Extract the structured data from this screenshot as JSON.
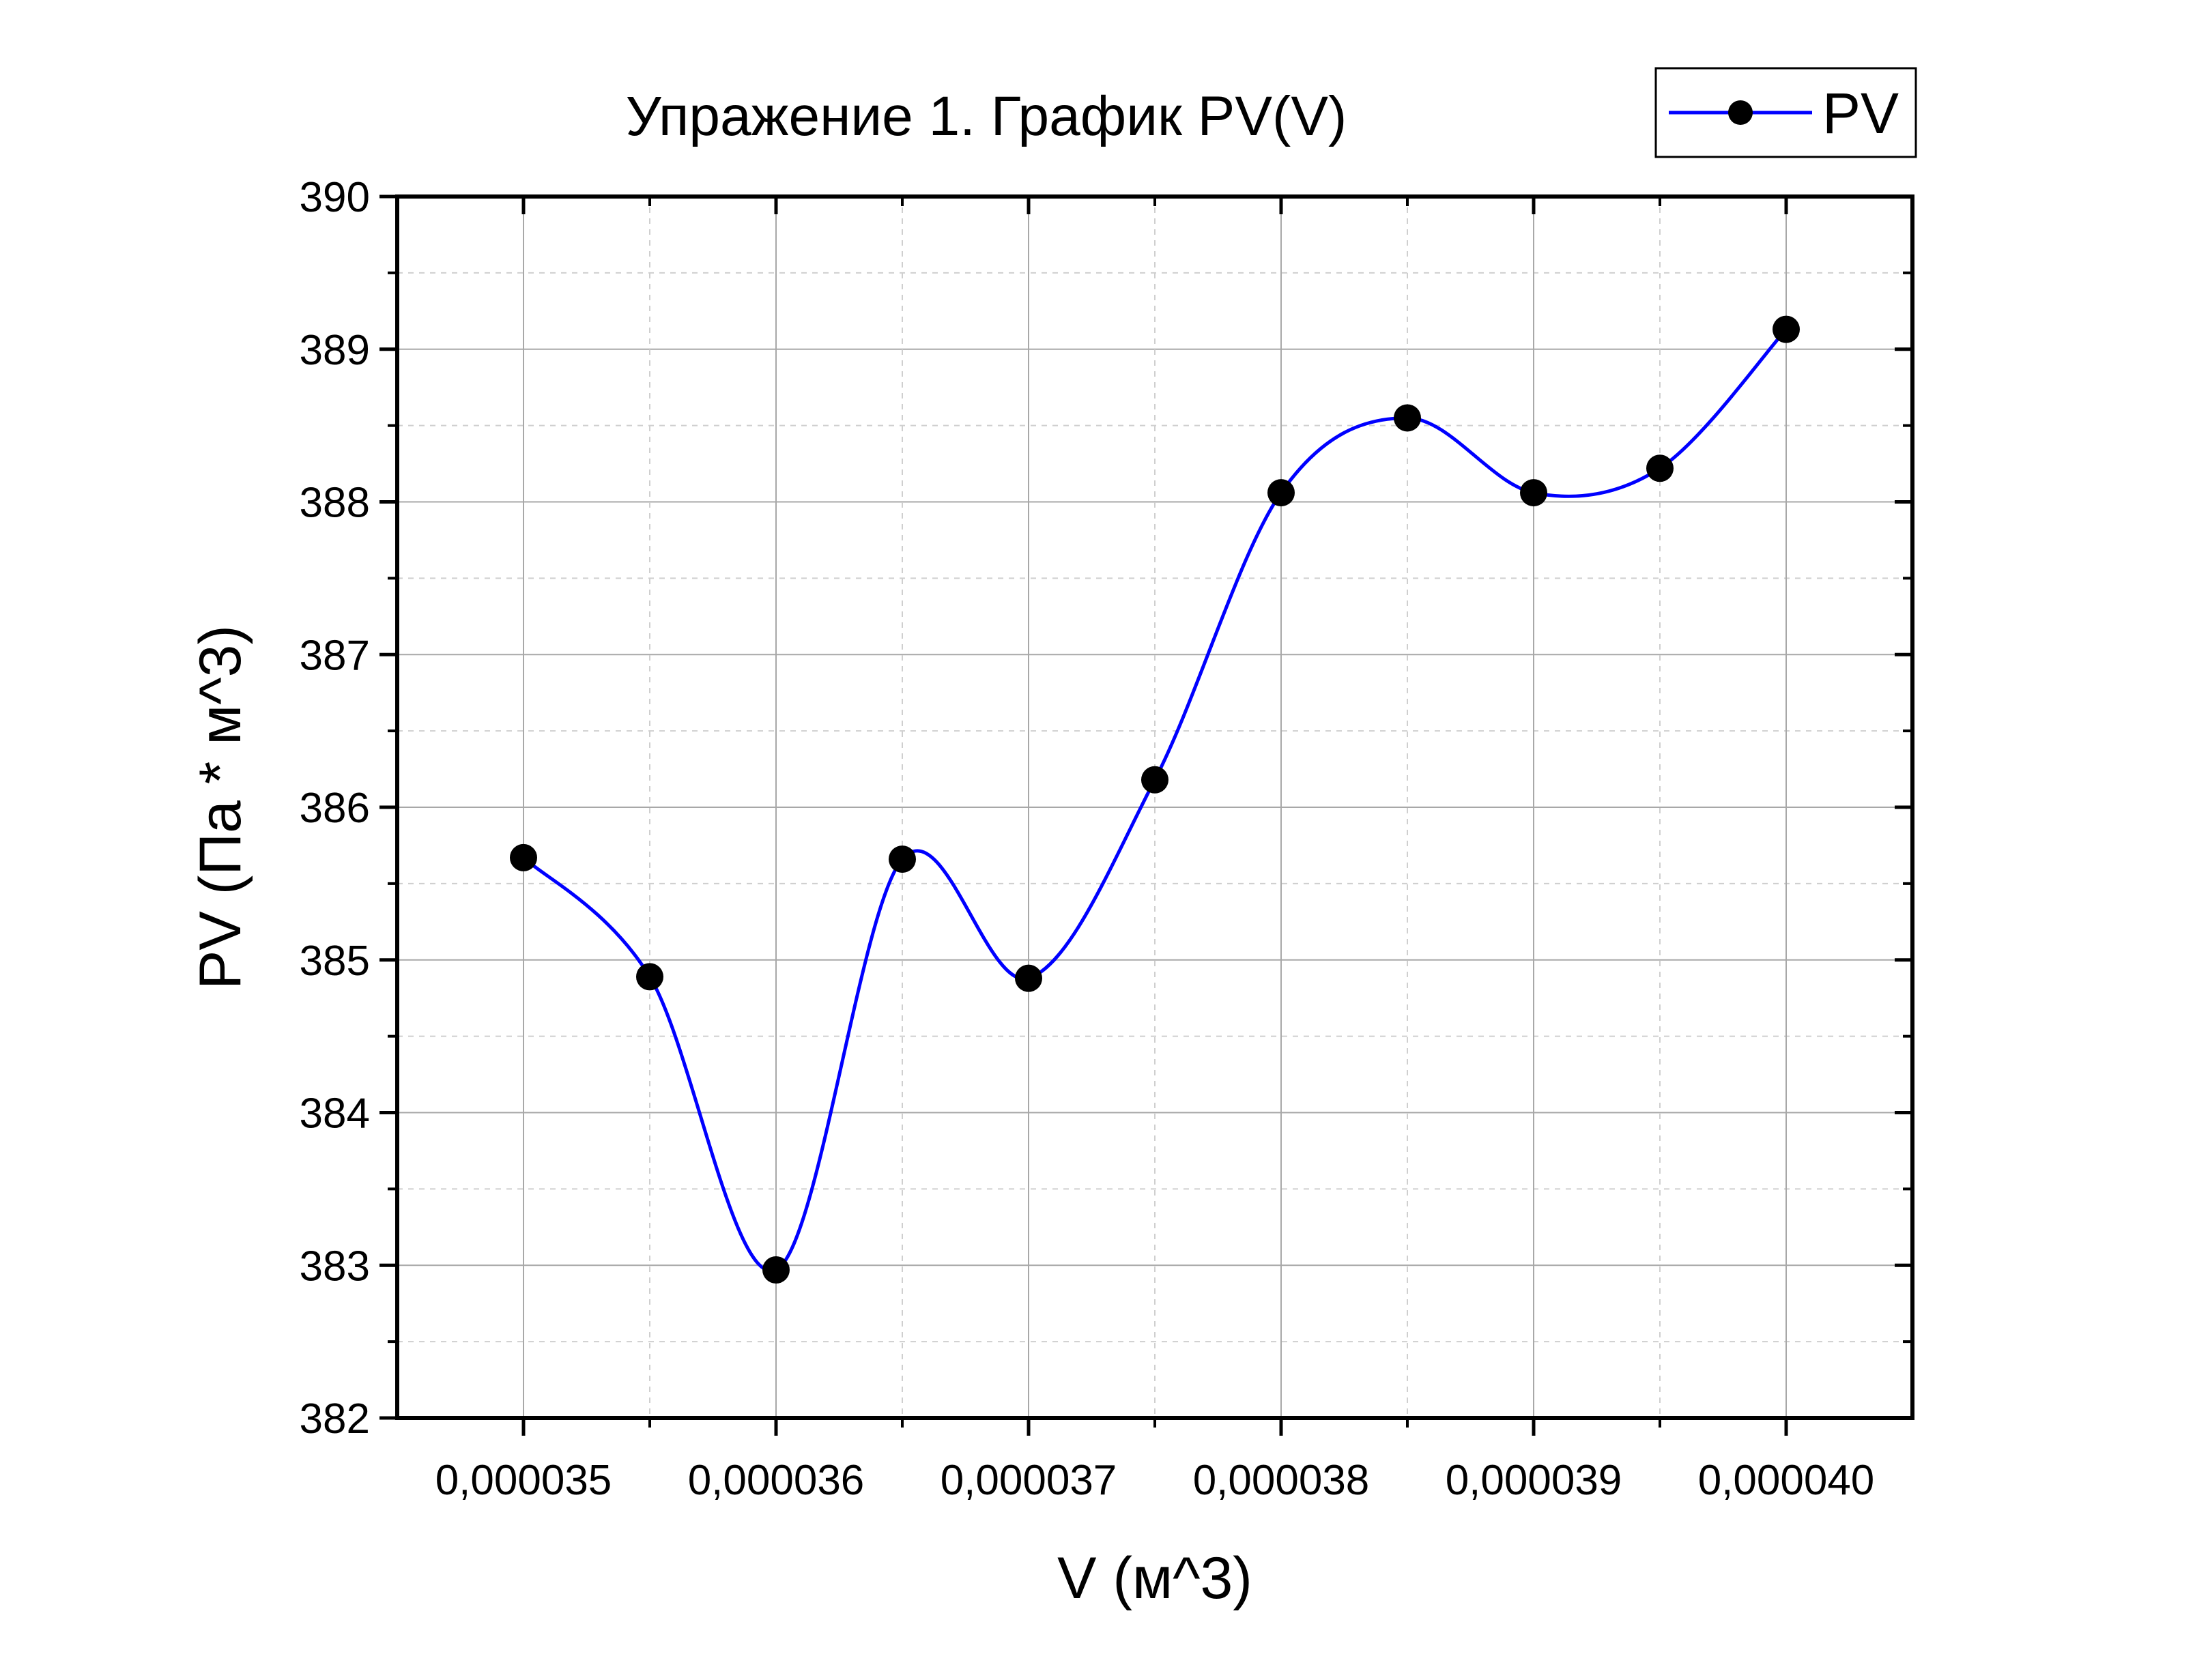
{
  "chart_data": {
    "type": "line",
    "title": "Упражение 1. График PV(V)",
    "xlabel": "V (м^3)",
    "ylabel": "PV (Па * м^3)",
    "xlim": [
      3.45e-05,
      4.05e-05
    ],
    "ylim": [
      382,
      390
    ],
    "x_ticks": [
      3.5e-05,
      3.6e-05,
      3.7e-05,
      3.8e-05,
      3.9e-05,
      4e-05
    ],
    "x_tick_labels": [
      "0,000035",
      "0,000036",
      "0,000037",
      "0,000038",
      "0,000039",
      "0,000040"
    ],
    "y_ticks": [
      382,
      383,
      384,
      385,
      386,
      387,
      388,
      389,
      390
    ],
    "y_tick_labels": [
      "382",
      "383",
      "384",
      "385",
      "386",
      "387",
      "388",
      "389",
      "390"
    ],
    "grid": true,
    "smoothed": true,
    "legend_position": "top-right",
    "series": [
      {
        "name": "PV",
        "color": "#0000ff",
        "marker": "circle",
        "marker_color": "#000000",
        "x": [
          3.5e-05,
          3.55e-05,
          3.6e-05,
          3.65e-05,
          3.7e-05,
          3.75e-05,
          3.8e-05,
          3.85e-05,
          3.9e-05,
          3.95e-05,
          4e-05
        ],
        "y": [
          385.67,
          384.89,
          382.97,
          385.66,
          384.88,
          386.18,
          388.06,
          388.55,
          388.06,
          388.22,
          389.13
        ]
      }
    ]
  }
}
